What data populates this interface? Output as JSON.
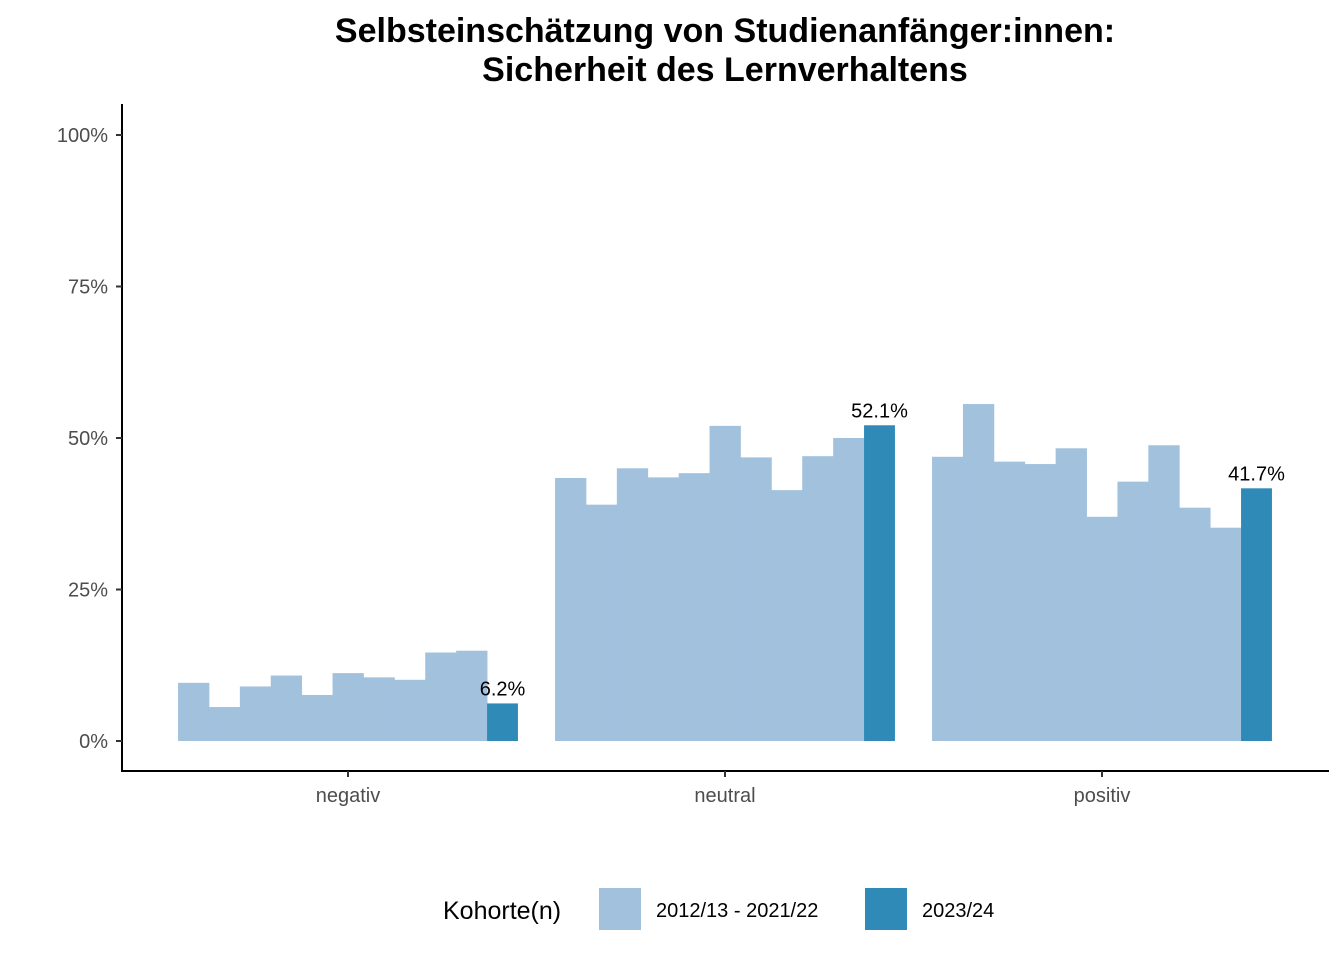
{
  "chart_data": {
    "type": "bar",
    "title": [
      "Selbsteinschätzung von Studienanfänger:innen:",
      "Sicherheit des Lernverhaltens"
    ],
    "xlabel": "",
    "ylabel": "",
    "ylim": [
      0,
      100
    ],
    "yticks": [
      0,
      25,
      50,
      75,
      100
    ],
    "ytick_labels": [
      "0%",
      "25%",
      "50%",
      "75%",
      "100%"
    ],
    "categories": [
      "negativ",
      "neutral",
      "positiv"
    ],
    "grid": false,
    "legend": {
      "title": "Kohorte(n)",
      "position": "bottom",
      "entries": [
        {
          "label": "2012/13 - 2021/22",
          "color": "#a1c1dd"
        },
        {
          "label": "2023/24",
          "color": "#2f8ab8"
        }
      ]
    },
    "series": [
      {
        "name": "2012/13 - 2021/22",
        "color": "#a1c1dd",
        "values": [
          [
            9.6,
            5.6,
            9.0,
            10.8,
            7.6,
            11.2,
            10.5,
            10.1,
            14.6,
            14.9
          ],
          [
            43.4,
            39.0,
            45.0,
            43.5,
            44.2,
            52.0,
            46.8,
            41.4,
            47.0,
            50.0
          ],
          [
            46.9,
            55.6,
            46.1,
            45.7,
            48.3,
            37.0,
            42.8,
            48.8,
            38.5,
            35.2
          ]
        ]
      },
      {
        "name": "2023/24",
        "color": "#2f8ab8",
        "values": [
          6.2,
          52.1,
          41.7
        ],
        "labels": [
          "6.2%",
          "52.1%",
          "41.7%"
        ]
      }
    ]
  }
}
